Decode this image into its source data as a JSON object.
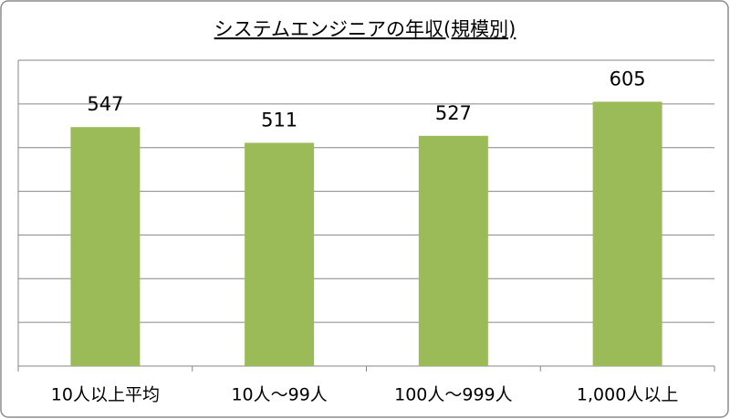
{
  "chart_data": {
    "type": "bar",
    "title": "システムエンジニアの年収(規模別)",
    "categories": [
      "10人以上平均",
      "10人～99人",
      "100人～999人",
      "1,000人以上"
    ],
    "values": [
      547,
      511,
      527,
      605
    ],
    "color": "#9bbb59",
    "ylim": [
      0,
      700
    ],
    "yticks": [
      0,
      100,
      200,
      300,
      400,
      500,
      600,
      700
    ],
    "grid": true
  }
}
